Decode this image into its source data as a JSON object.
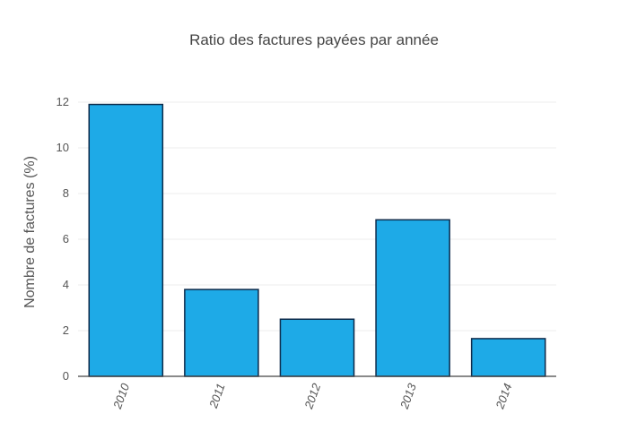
{
  "chart_data": {
    "type": "bar",
    "title": "Ratio des factures payées par année",
    "xlabel": "",
    "ylabel": "Nombre de factures (%)",
    "categories": [
      "2010",
      "2011",
      "2012",
      "2013",
      "2014"
    ],
    "values": [
      11.9,
      3.8,
      2.5,
      6.85,
      1.65
    ],
    "ylim": [
      0,
      12
    ],
    "yticks": [
      "0",
      "2",
      "4",
      "6",
      "8",
      "10",
      "12"
    ],
    "grid": true,
    "bar_color": "#1eaae7",
    "bar_outline_color": "#0d2a4a"
  }
}
